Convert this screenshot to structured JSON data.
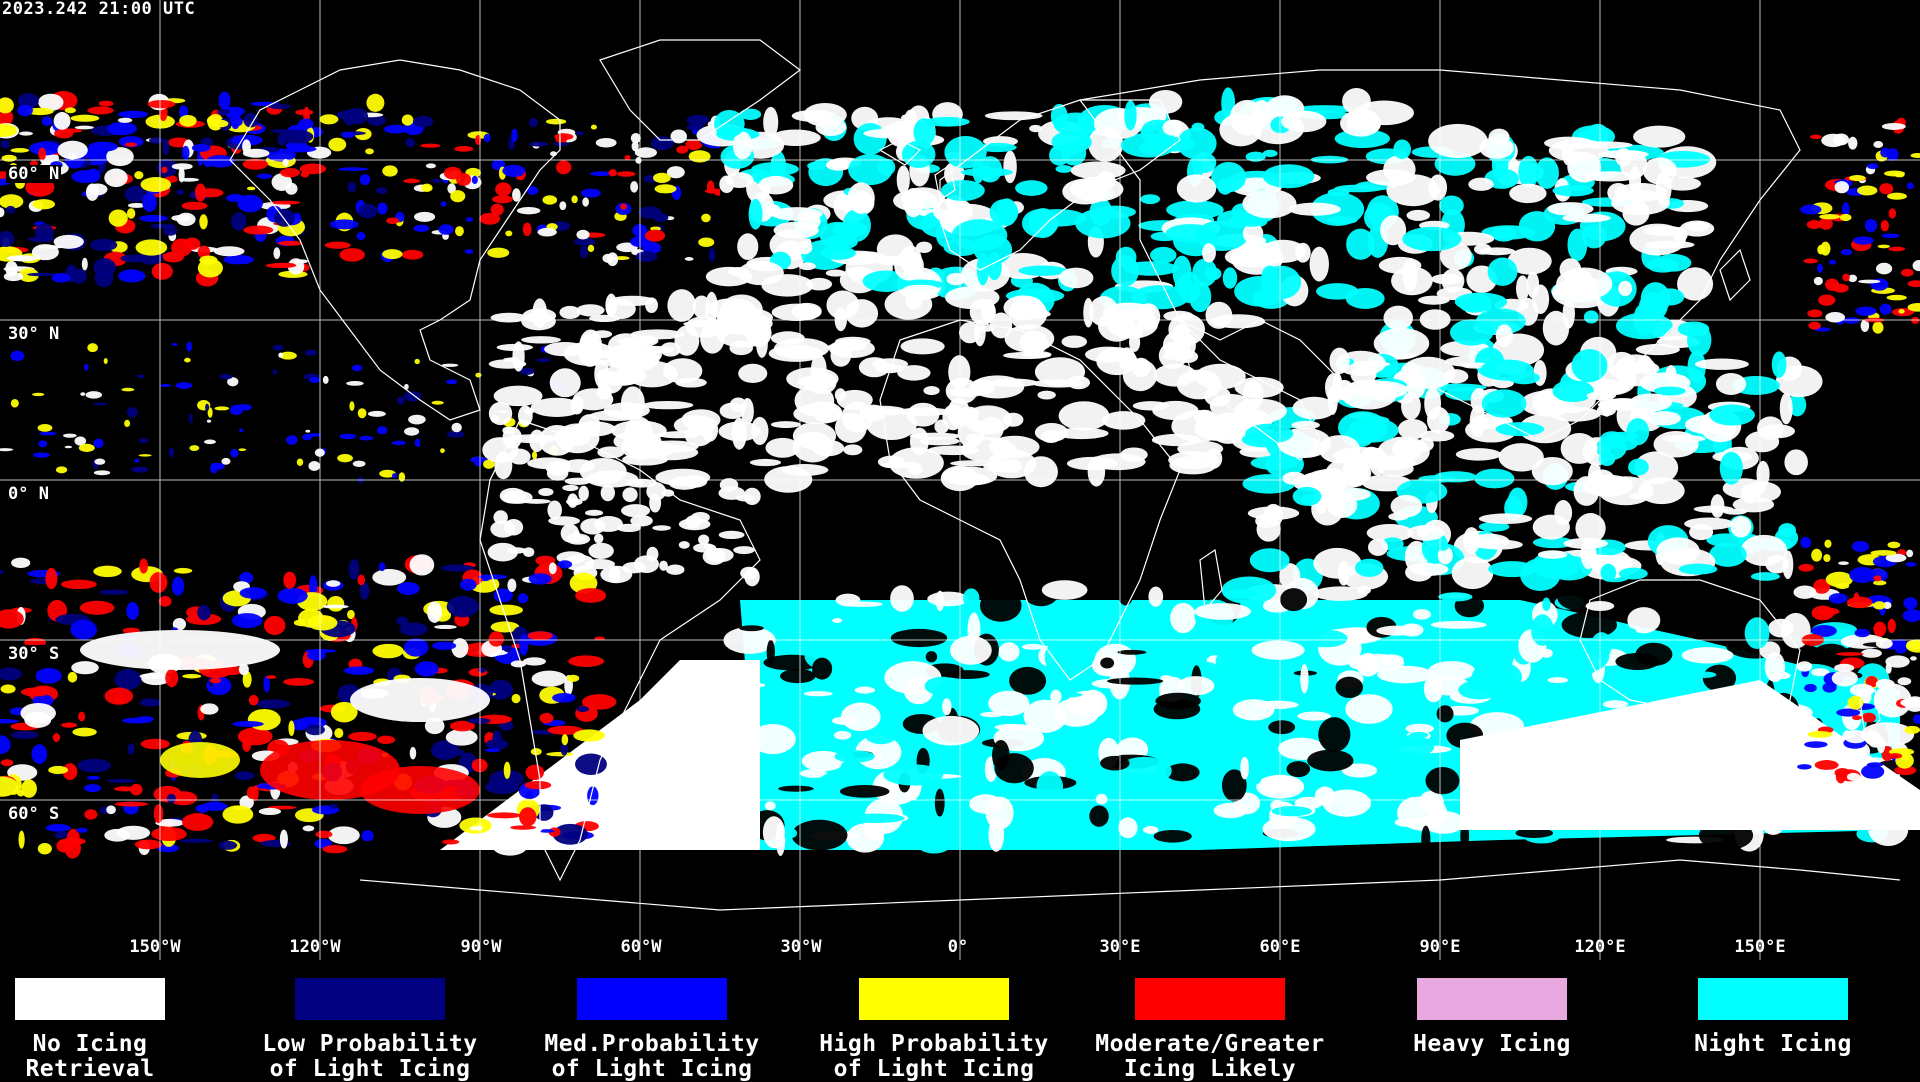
{
  "timestamp": "2023.242 21:00 UTC",
  "lat_labels": [
    "60° N",
    "30° N",
    "0° N",
    "30° S",
    "60° S"
  ],
  "lon_labels": [
    "150°W",
    "120°W",
    "90°W",
    "60°W",
    "30°W",
    "0°",
    "30°E",
    "60°E",
    "90°E",
    "120°E",
    "150°E"
  ],
  "colors": {
    "background": "#000000",
    "no_icing": "#ffffff",
    "low_prob": "#000080",
    "med_prob": "#0000ff",
    "high_prob": "#ffff00",
    "moderate": "#ff0000",
    "heavy": "#e8a8e0",
    "night": "#00ffff",
    "grid": "#ffffff",
    "coast": "#ffffff"
  },
  "legend": [
    {
      "label": "No Icing\nRetrieval",
      "color": "#ffffff"
    },
    {
      "label": "Low Probability\nof Light Icing",
      "color": "#000080"
    },
    {
      "label": "Med.Probability\nof Light Icing",
      "color": "#0000ff"
    },
    {
      "label": "High Probability\nof Light Icing",
      "color": "#ffff00"
    },
    {
      "label": "Moderate/Greater\nIcing Likely",
      "color": "#ff0000"
    },
    {
      "label": "Heavy Icing",
      "color": "#e8a8e0"
    },
    {
      "label": "Night Icing",
      "color": "#00ffff"
    }
  ]
}
